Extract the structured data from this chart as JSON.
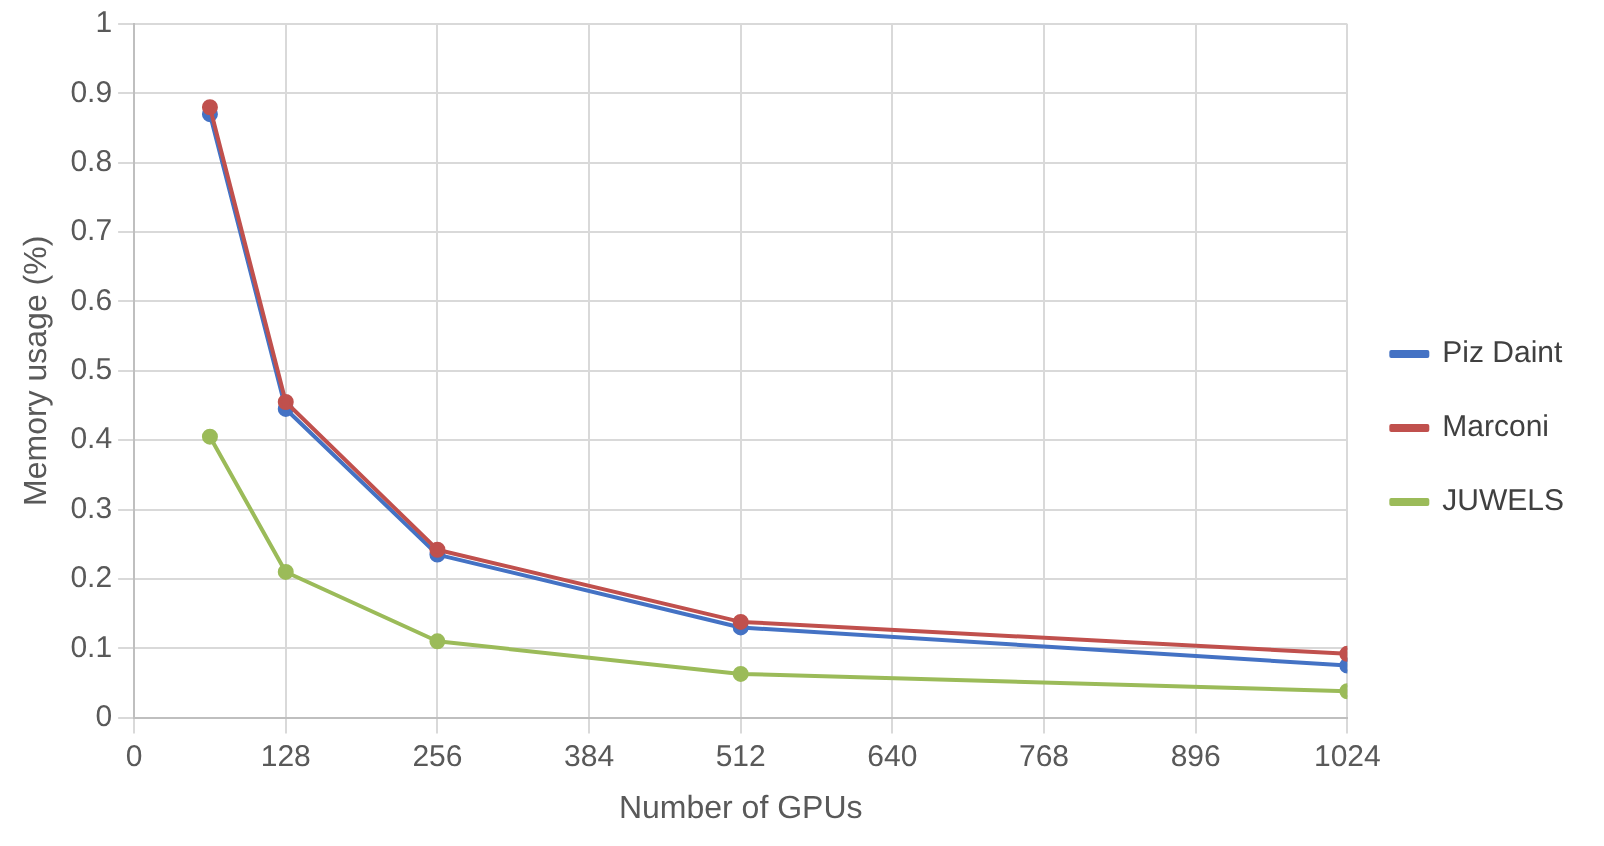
{
  "chart_data": {
    "type": "line",
    "xlabel": "Number of GPUs",
    "ylabel": "Memory usage (%)",
    "x": [
      64,
      128,
      256,
      512,
      1024
    ],
    "series": [
      {
        "name": "Piz Daint",
        "color": "#4472c4",
        "values": [
          0.87,
          0.445,
          0.235,
          0.13,
          0.075
        ]
      },
      {
        "name": "Marconi",
        "color": "#c0504d",
        "values": [
          0.88,
          0.455,
          0.242,
          0.138,
          0.092
        ]
      },
      {
        "name": "JUWELS",
        "color": "#9bbb59",
        "values": [
          0.405,
          0.21,
          0.11,
          0.063,
          0.038
        ]
      }
    ],
    "xlim": [
      0,
      1024
    ],
    "xticks": [
      0,
      128,
      256,
      384,
      512,
      640,
      768,
      896,
      1024
    ],
    "ylim": [
      0,
      1
    ],
    "yticks": [
      0,
      0.1,
      0.2,
      0.3,
      0.4,
      0.5,
      0.6,
      0.7,
      0.8,
      0.9,
      1
    ],
    "grid": true,
    "legend": "right",
    "marker": "circle",
    "line_style": "solid"
  }
}
